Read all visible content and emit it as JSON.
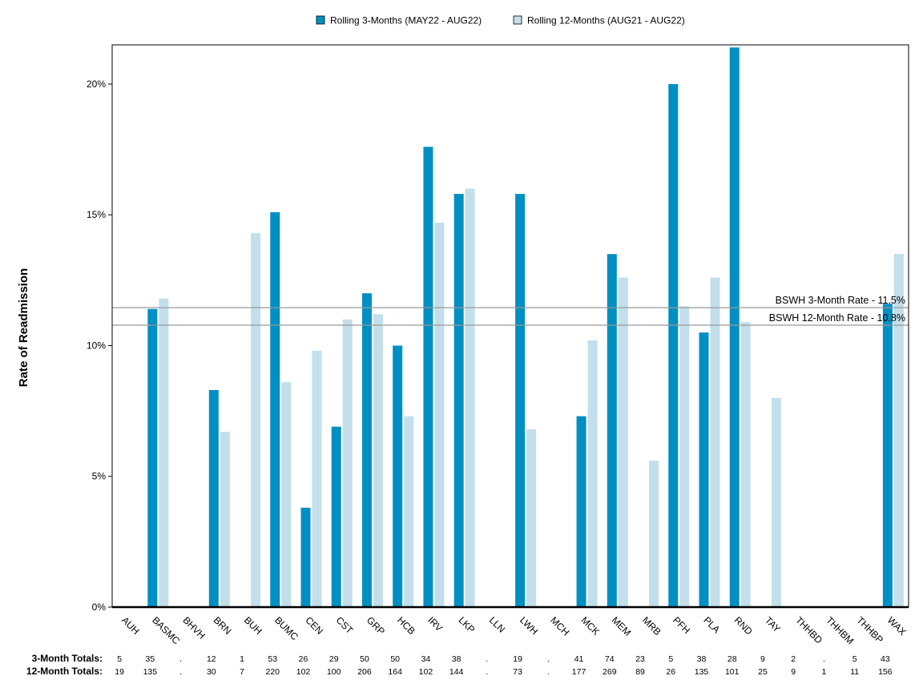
{
  "chart_data": {
    "type": "bar",
    "ylabel": "Rate of Readmission",
    "ylim": [
      0,
      21.5
    ],
    "yticks": [
      0,
      5,
      10,
      15,
      20
    ],
    "ytick_labels": [
      "0%",
      "5%",
      "10%",
      "15%",
      "20%"
    ],
    "grid": false,
    "legend_position": "top-center",
    "categories": [
      "AUH",
      "BASMC",
      "BHVH",
      "BRN",
      "BUH",
      "BUMC",
      "CEN",
      "CST",
      "GRP",
      "HCB",
      "IRV",
      "LKP",
      "LLN",
      "LWH",
      "MCH",
      "MCK",
      "MEM",
      "MRB",
      "PFH",
      "PLA",
      "RND",
      "TAY",
      "THHBD",
      "THHBM",
      "THHBP",
      "WAX"
    ],
    "series": [
      {
        "name": "Rolling 3-Months (MAY22 - AUG22)",
        "color": "#008fc2",
        "values": [
          0,
          11.4,
          0,
          8.3,
          0,
          15.1,
          3.8,
          6.9,
          12.0,
          10.0,
          17.6,
          15.8,
          0,
          15.8,
          0,
          7.3,
          13.5,
          0,
          20.0,
          10.5,
          21.4,
          0,
          0,
          0,
          0,
          11.6
        ]
      },
      {
        "name": "Rolling 12-Months (AUG21 - AUG22)",
        "color": "#c2dfeb",
        "values": [
          0,
          11.8,
          0,
          6.7,
          14.3,
          8.6,
          9.8,
          11.0,
          11.2,
          7.3,
          14.7,
          16.0,
          0,
          6.8,
          0,
          10.2,
          12.6,
          5.6,
          11.5,
          12.6,
          10.9,
          8.0,
          0,
          0,
          0,
          13.5
        ]
      }
    ],
    "reference_lines": [
      {
        "label": "BSWH  3-Month Rate - 11.5%",
        "value": 11.45
      },
      {
        "label": "BSWH 12-Month Rate - 10.8%",
        "value": 10.78
      }
    ],
    "totals": [
      {
        "label": "3-Month Totals:",
        "values": [
          "5",
          "35",
          ".",
          "12",
          "1",
          "53",
          "26",
          "29",
          "50",
          "50",
          "34",
          "38",
          ".",
          "19",
          ".",
          "41",
          "74",
          "23",
          "5",
          "38",
          "28",
          "9",
          "2",
          ".",
          "5",
          "43"
        ]
      },
      {
        "label": "12-Month Totals:",
        "values": [
          "19",
          "135",
          ".",
          "30",
          "7",
          "220",
          "102",
          "100",
          "206",
          "164",
          "102",
          "144",
          ".",
          "73",
          ".",
          "177",
          "269",
          "89",
          "26",
          "135",
          "101",
          "25",
          "9",
          "1",
          "11",
          "156"
        ]
      }
    ]
  }
}
